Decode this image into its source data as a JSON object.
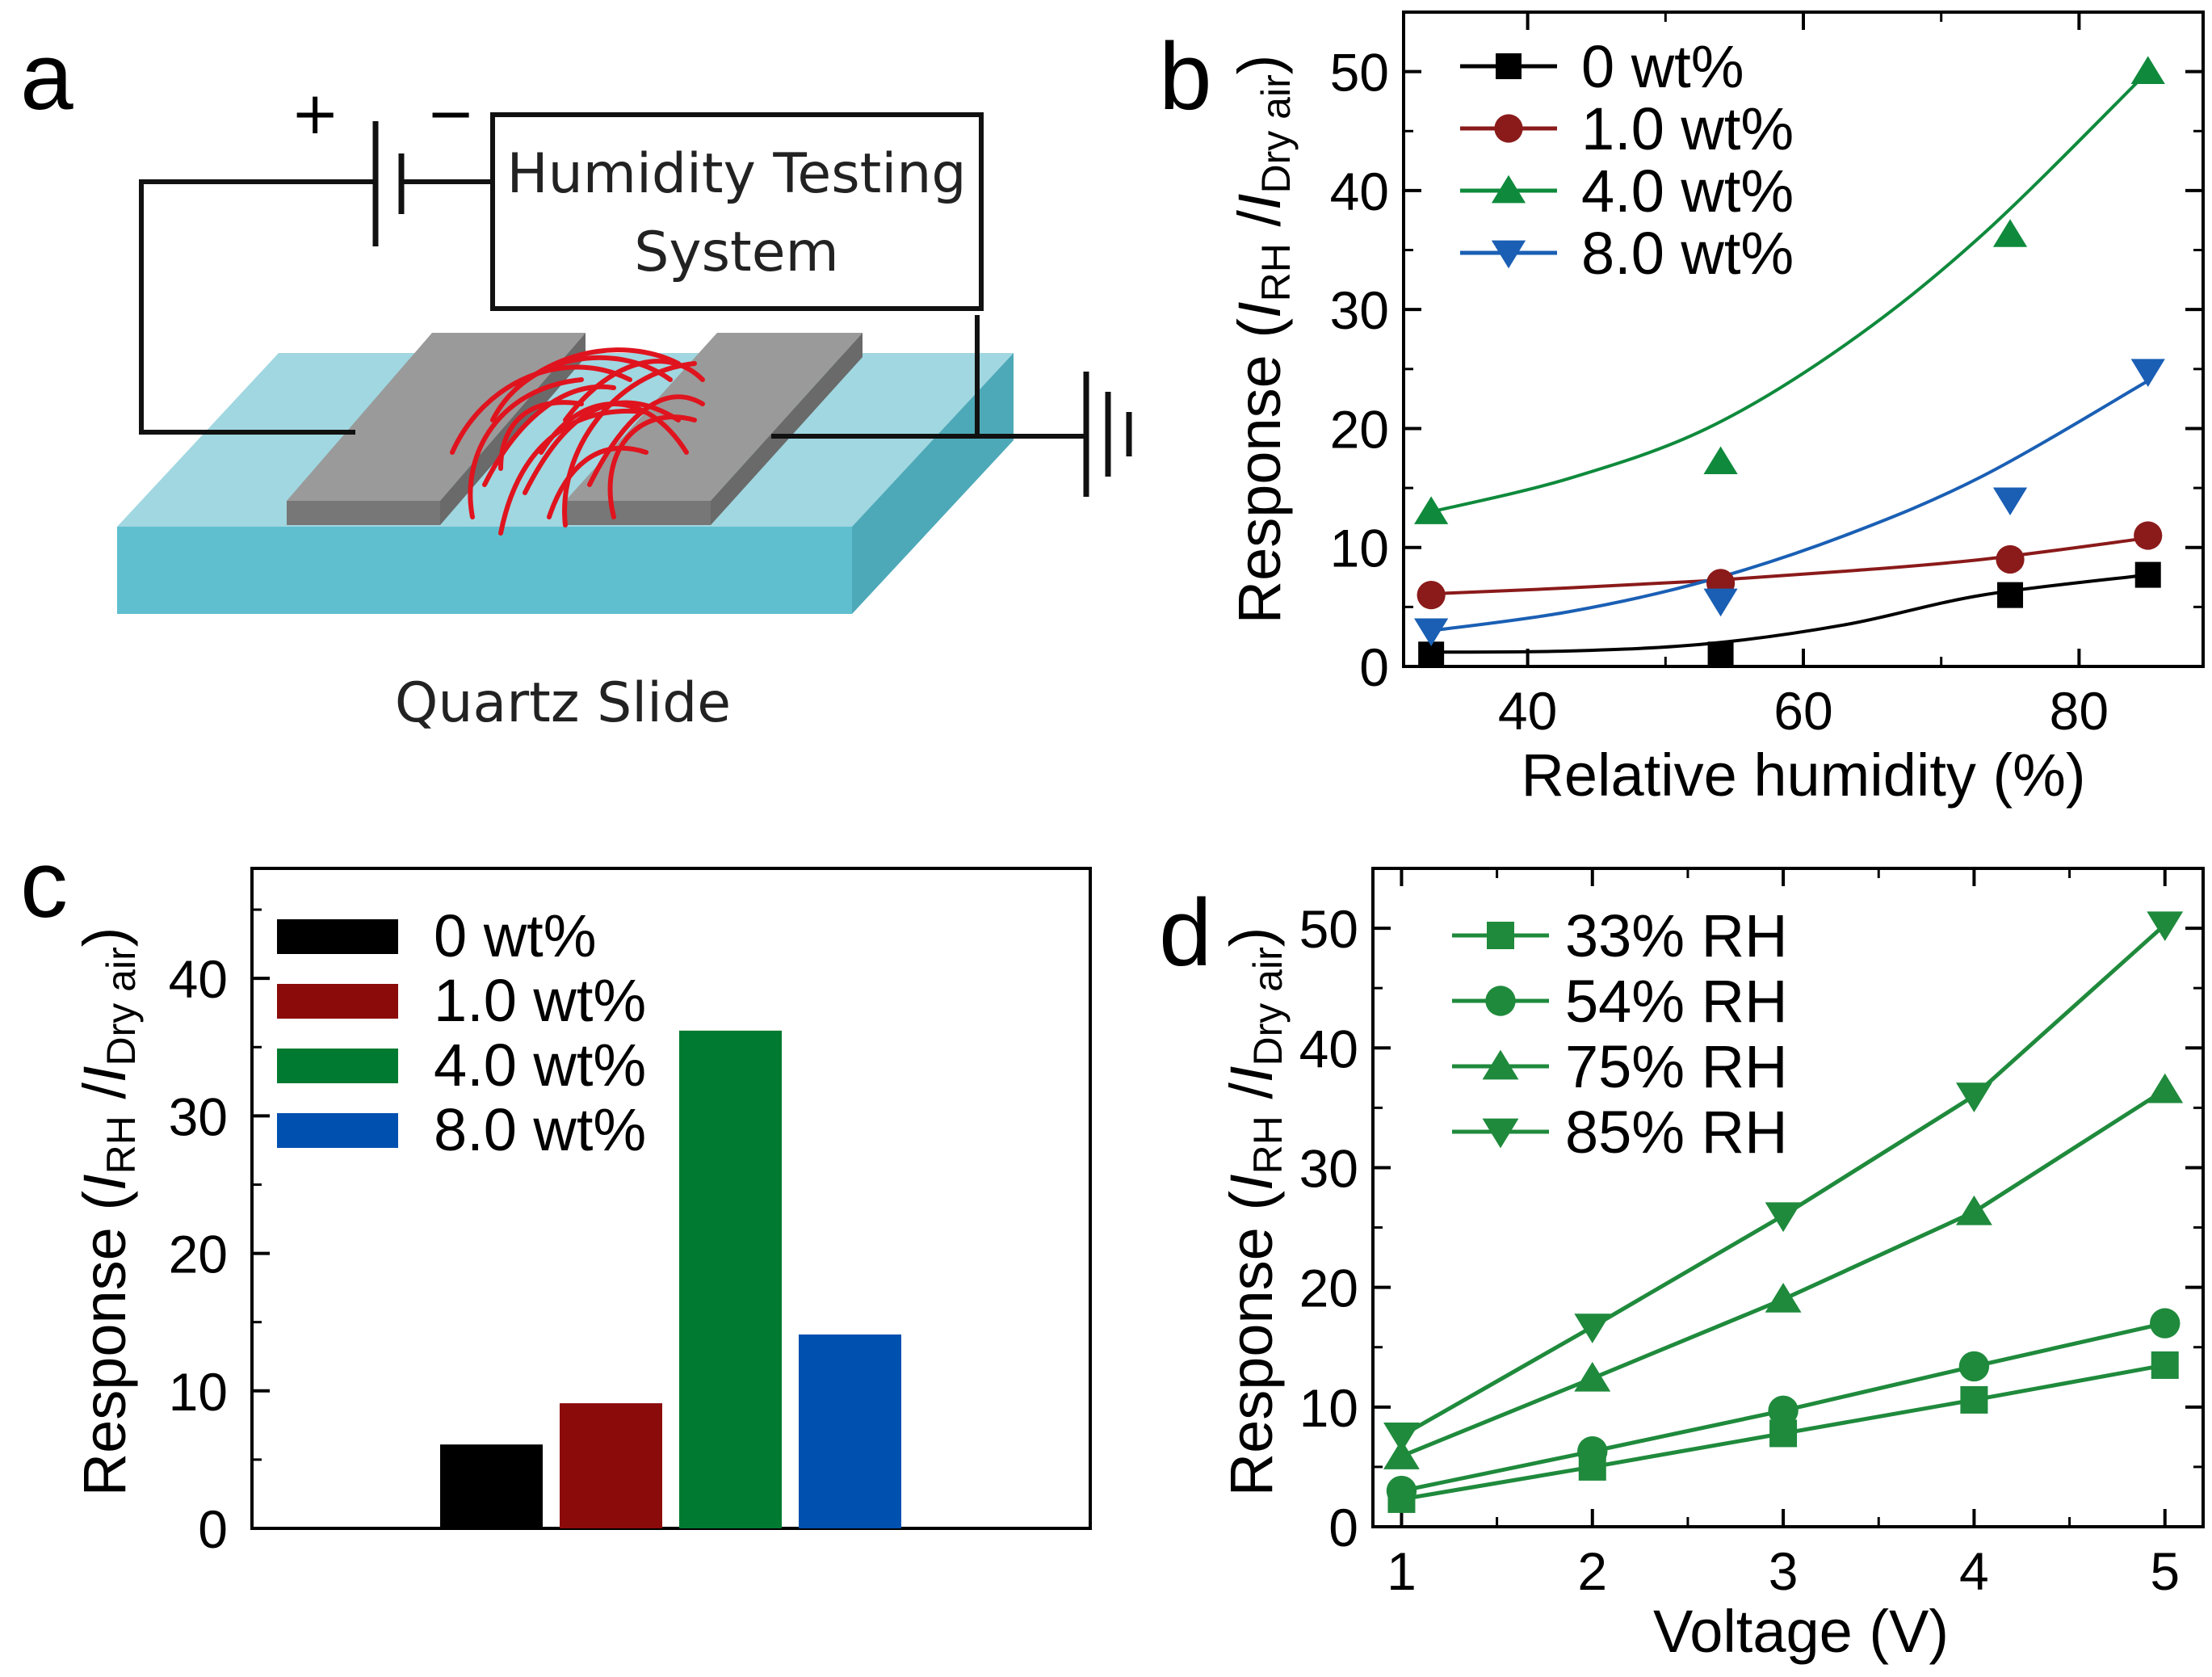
{
  "panels": {
    "a": {
      "letter": "a",
      "plus": "+",
      "minus": "−",
      "box_line1": "Humidity Testing",
      "box_line2": "System",
      "caption": "Quartz Slide"
    },
    "b": {
      "letter": "b"
    },
    "c": {
      "letter": "c"
    },
    "d": {
      "letter": "d"
    }
  },
  "chart_data": [
    {
      "panel": "b",
      "type": "line",
      "xlabel": "Relative humidity (%)",
      "ylabel": "Response (I_RH / I_Dry air)",
      "ylabel_parts": {
        "pre": "Response (",
        "i1": "I",
        "s1": "RH",
        "mid": " /",
        "i2": "I",
        "s2": "Dry air",
        "post": ")"
      },
      "xlim": [
        31,
        89
      ],
      "ylim": [
        0,
        55
      ],
      "xticks": [
        40,
        60,
        80
      ],
      "yticks": [
        0,
        10,
        20,
        30,
        40,
        50
      ],
      "legend_position": "top-left",
      "series": [
        {
          "name": "0 wt%",
          "color": "#000000",
          "marker": "square",
          "x": [
            33,
            54,
            75,
            85
          ],
          "y": [
            1.0,
            1.0,
            6.0,
            7.7
          ],
          "fit": [
            1.2,
            1.3,
            1.9,
            3.5,
            6.0,
            7.7
          ]
        },
        {
          "name": "1.0 wt%",
          "color": "#8b1a1a",
          "marker": "circle",
          "x": [
            33,
            54,
            75,
            85
          ],
          "y": [
            6.0,
            7.0,
            9.0,
            11.0
          ],
          "fit": [
            6.1,
            6.6,
            7.2,
            8.0,
            9.0,
            10.8
          ]
        },
        {
          "name": "4.0 wt%",
          "color": "#0f8a3c",
          "marker": "triangle-up",
          "x": [
            33,
            54,
            75,
            85
          ],
          "y": [
            13.0,
            17.2,
            36.3,
            50.0
          ],
          "fit": [
            13.0,
            15.8,
            20.0,
            27.0,
            36.3,
            50.0
          ]
        },
        {
          "name": "8.0 wt%",
          "color": "#1a5fb4",
          "marker": "triangle-down",
          "x": [
            33,
            54,
            75,
            85
          ],
          "y": [
            3.0,
            5.5,
            14.0,
            24.8
          ],
          "fit": [
            3.0,
            4.6,
            7.2,
            11.0,
            16.0,
            24.0
          ]
        }
      ],
      "fit_x": [
        33,
        43,
        53,
        63,
        73,
        85
      ]
    },
    {
      "panel": "c",
      "type": "bar",
      "ylabel": "Response (I_RH / I_Dry air)",
      "ylabel_parts": {
        "pre": "Response (",
        "i1": "I",
        "s1": "RH",
        "mid": " /",
        "i2": "I",
        "s2": "Dry air",
        "post": ")"
      },
      "ylim": [
        0,
        48
      ],
      "yticks": [
        0,
        10,
        20,
        30,
        40
      ],
      "legend_position": "top-left",
      "categories": [
        "0 wt%",
        "1.0 wt%",
        "4.0 wt%",
        "8.0 wt%"
      ],
      "values": [
        6.1,
        9.1,
        36.2,
        14.1
      ],
      "colors": [
        "#000000",
        "#8b0a0a",
        "#007a30",
        "#0050b0"
      ]
    },
    {
      "panel": "d",
      "type": "line",
      "xlabel": "Voltage (V)",
      "ylabel": "Response (I_RH / I_Dry air)",
      "ylabel_parts": {
        "pre": "Response (",
        "i1": "I",
        "s1": "RH",
        "mid": " /",
        "i2": "I",
        "s2": "Dry air",
        "post": ")"
      },
      "xlim": [
        0.85,
        5.2
      ],
      "ylim": [
        0,
        55
      ],
      "xticks": [
        1,
        2,
        3,
        4,
        5
      ],
      "yticks": [
        0,
        10,
        20,
        30,
        40,
        50
      ],
      "legend_position": "top-left",
      "color": "#1f8a3c",
      "series": [
        {
          "name": "33% RH",
          "marker": "square",
          "x": [
            1,
            2,
            3,
            4,
            5
          ],
          "y": [
            2.3,
            5.0,
            7.8,
            10.6,
            13.5
          ]
        },
        {
          "name": "54% RH",
          "marker": "circle",
          "x": [
            1,
            2,
            3,
            4,
            5
          ],
          "y": [
            3.0,
            6.3,
            9.7,
            13.4,
            17.0
          ]
        },
        {
          "name": "75% RH",
          "marker": "triangle-up",
          "x": [
            1,
            2,
            3,
            4,
            5
          ],
          "y": [
            5.9,
            12.4,
            19.0,
            26.3,
            36.5
          ]
        },
        {
          "name": "85% RH",
          "marker": "triangle-down",
          "x": [
            1,
            2,
            3,
            4,
            5
          ],
          "y": [
            7.6,
            16.7,
            26.0,
            36.0,
            50.3
          ]
        }
      ]
    }
  ]
}
